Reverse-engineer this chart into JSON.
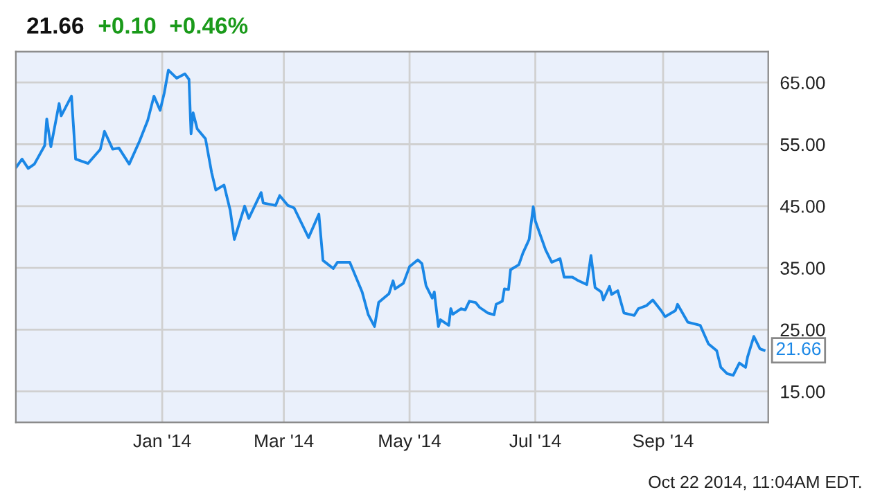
{
  "chart_data": {
    "type": "line",
    "title": "21.66",
    "subtitle": "+0.10  +0.46%",
    "annotations": [
      {
        "text": "21.66",
        "x": "2014-10-20",
        "y": 21.66
      },
      "Oct 22 2014, 11:04AM EDT."
    ],
    "x": [
      "2013-10-22",
      "2013-10-25",
      "2013-10-28",
      "2013-10-31",
      "2013-11-05",
      "2013-11-06",
      "2013-11-08",
      "2013-11-12",
      "2013-11-13",
      "2013-11-18",
      "2013-11-20",
      "2013-11-26",
      "2013-12-02",
      "2013-12-04",
      "2013-12-08",
      "2013-12-11",
      "2013-12-16",
      "2013-12-21",
      "2013-12-25",
      "2013-12-28",
      "2013-12-31",
      "2014-01-02",
      "2014-01-04",
      "2014-01-08",
      "2014-01-12",
      "2014-01-14",
      "2014-01-15",
      "2014-01-16",
      "2014-01-18",
      "2014-01-22",
      "2014-01-25",
      "2014-01-27",
      "2014-01-31",
      "2014-02-03",
      "2014-02-05",
      "2014-02-10",
      "2014-02-12",
      "2014-02-18",
      "2014-02-19",
      "2014-02-25",
      "2014-02-27",
      "2014-03-03",
      "2014-03-06",
      "2014-03-13",
      "2014-03-18",
      "2014-03-20",
      "2014-03-25",
      "2014-03-27",
      "2014-04-02",
      "2014-04-08",
      "2014-04-11",
      "2014-04-14",
      "2014-04-16",
      "2014-04-21",
      "2014-04-23",
      "2014-04-24",
      "2014-04-28",
      "2014-05-01",
      "2014-05-05",
      "2014-05-07",
      "2014-05-09",
      "2014-05-12",
      "2014-05-13",
      "2014-05-15",
      "2014-05-16",
      "2014-05-20",
      "2014-05-21",
      "2014-05-22",
      "2014-05-26",
      "2014-05-28",
      "2014-05-30",
      "2014-06-02",
      "2014-06-04",
      "2014-06-08",
      "2014-06-11",
      "2014-06-12",
      "2014-06-15",
      "2014-06-16",
      "2014-06-18",
      "2014-06-19",
      "2014-06-23",
      "2014-06-25",
      "2014-06-28",
      "2014-06-30",
      "2014-07-01",
      "2014-07-06",
      "2014-07-09",
      "2014-07-13",
      "2014-07-15",
      "2014-07-19",
      "2014-07-22",
      "2014-07-26",
      "2014-07-28",
      "2014-07-30",
      "2014-08-02",
      "2014-08-03",
      "2014-08-06",
      "2014-08-07",
      "2014-08-10",
      "2014-08-13",
      "2014-08-18",
      "2014-08-20",
      "2014-08-24",
      "2014-08-27",
      "2014-08-31",
      "2014-09-02",
      "2014-09-07",
      "2014-09-08",
      "2014-09-13",
      "2014-09-19",
      "2014-09-23",
      "2014-09-27",
      "2014-09-29",
      "2014-10-02",
      "2014-10-05",
      "2014-10-08",
      "2014-10-11",
      "2014-10-12",
      "2014-10-15",
      "2014-10-18",
      "2014-10-20"
    ],
    "series": [
      {
        "color": "#1a87e6",
        "values": [
          51.2,
          52.6,
          51.1,
          51.8,
          54.8,
          59.1,
          54.6,
          61.6,
          59.6,
          62.8,
          52.6,
          51.9,
          54.2,
          57.1,
          54.2,
          54.4,
          51.8,
          55.5,
          58.9,
          62.8,
          60.5,
          63.3,
          67.0,
          65.7,
          66.4,
          65.5,
          56.7,
          60.1,
          57.5,
          55.9,
          50.4,
          47.6,
          48.4,
          44.3,
          39.6,
          45.0,
          43.0,
          47.2,
          45.5,
          45.1,
          46.7,
          45.1,
          44.7,
          39.9,
          43.7,
          36.2,
          34.9,
          35.9,
          35.9,
          31.1,
          27.4,
          25.5,
          29.4,
          30.8,
          32.9,
          31.6,
          32.5,
          35.2,
          36.3,
          35.7,
          32.1,
          30.1,
          31.1,
          25.5,
          26.6,
          25.7,
          28.4,
          27.5,
          28.4,
          28.2,
          29.6,
          29.4,
          28.6,
          27.7,
          27.4,
          29.1,
          29.6,
          31.6,
          31.5,
          34.7,
          35.5,
          37.4,
          39.6,
          44.9,
          42.6,
          37.9,
          35.9,
          36.5,
          33.5,
          33.5,
          32.9,
          32.3,
          37.0,
          31.8,
          31.1,
          29.8,
          32.0,
          30.7,
          31.3,
          27.7,
          27.3,
          28.4,
          28.9,
          29.8,
          28.1,
          27.1,
          28.1,
          29.1,
          26.2,
          25.7,
          22.7,
          21.6,
          18.9,
          17.9,
          17.6,
          19.6,
          18.9,
          20.6,
          23.9,
          21.9,
          21.66
        ]
      }
    ],
    "xlim": [
      "2013-10-22",
      "2014-10-22"
    ],
    "xticks": [
      {
        "value": "2014-01-01",
        "label": "Jan '14"
      },
      {
        "value": "2014-03-01",
        "label": "Mar '14"
      },
      {
        "value": "2014-05-01",
        "label": "May '14"
      },
      {
        "value": "2014-07-01",
        "label": "Jul '14"
      },
      {
        "value": "2014-09-01",
        "label": "Sep '14"
      }
    ],
    "ylim": [
      10,
      70
    ],
    "yticks": [
      {
        "value": 15,
        "label": "15.00"
      },
      {
        "value": 25,
        "label": "25.00"
      },
      {
        "value": 35,
        "label": "35.00"
      },
      {
        "value": 45,
        "label": "45.00"
      },
      {
        "value": 55,
        "label": "55.00"
      },
      {
        "value": 65,
        "label": "65.00"
      }
    ],
    "grid": true,
    "marker": "none",
    "line_style": "solid"
  }
}
